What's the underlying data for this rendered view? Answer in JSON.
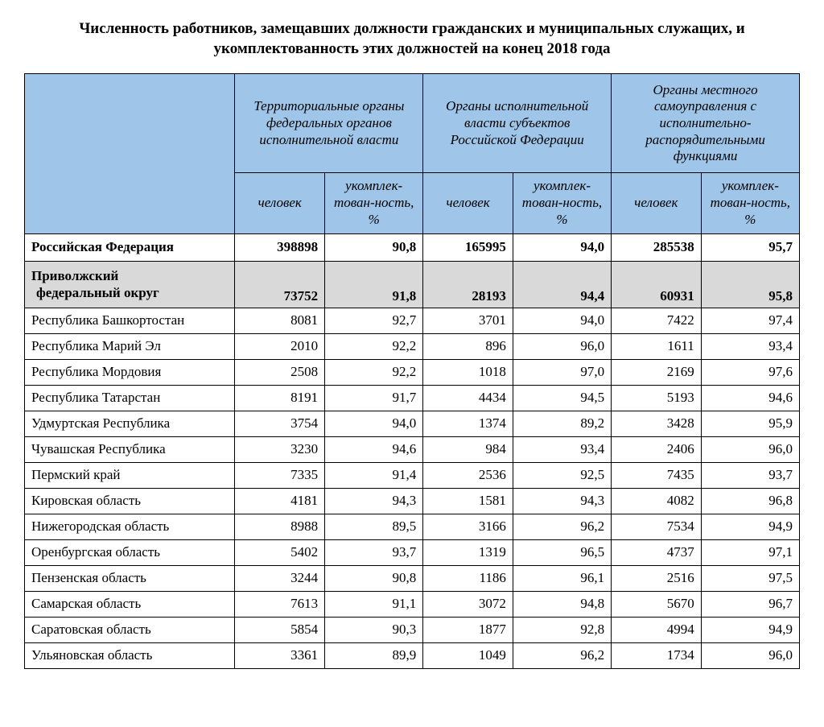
{
  "title": "Численность работников, замещавших должности гражданских и муниципальных служащих, и укомплектованность этих должностей на конец 2018 года",
  "header": {
    "group1": "Территориальные органы федеральных органов исполнительной власти",
    "group2": "Органы исполнительной власти субъектов Российской Федерации",
    "group3": "Органы местного самоуправления с исполнительно-распорядительными функциями",
    "sub_people": "человек",
    "sub_pct": "укомплек-тован-ность, %"
  },
  "rows": [
    {
      "name": "Российская Федерация",
      "c1": "398898",
      "p1": "90,8",
      "c2": "165995",
      "p2": "94,0",
      "c3": "285538",
      "p3": "95,7",
      "kind": "bold"
    },
    {
      "name": "Приволжский\n федеральный округ",
      "c1": "73752",
      "p1": "91,8",
      "c2": "28193",
      "p2": "94,4",
      "c3": "60931",
      "p3": "95,8",
      "kind": "highlight"
    },
    {
      "name": "Республика Башкортостан",
      "c1": "8081",
      "p1": "92,7",
      "c2": "3701",
      "p2": "94,0",
      "c3": "7422",
      "p3": "97,4",
      "kind": "normal"
    },
    {
      "name": "Республика Марий Эл",
      "c1": "2010",
      "p1": "92,2",
      "c2": "896",
      "p2": "96,0",
      "c3": "1611",
      "p3": "93,4",
      "kind": "normal"
    },
    {
      "name": "Республика Мордовия",
      "c1": "2508",
      "p1": "92,2",
      "c2": "1018",
      "p2": "97,0",
      "c3": "2169",
      "p3": "97,6",
      "kind": "normal"
    },
    {
      "name": "Республика Татарстан",
      "c1": "8191",
      "p1": "91,7",
      "c2": "4434",
      "p2": "94,5",
      "c3": "5193",
      "p3": "94,6",
      "kind": "normal"
    },
    {
      "name": "Удмуртская Республика",
      "c1": "3754",
      "p1": "94,0",
      "c2": "1374",
      "p2": "89,2",
      "c3": "3428",
      "p3": "95,9",
      "kind": "normal"
    },
    {
      "name": "Чувашская Республика",
      "c1": "3230",
      "p1": "94,6",
      "c2": "984",
      "p2": "93,4",
      "c3": "2406",
      "p3": "96,0",
      "kind": "normal"
    },
    {
      "name": "Пермский край",
      "c1": "7335",
      "p1": "91,4",
      "c2": "2536",
      "p2": "92,5",
      "c3": "7435",
      "p3": "93,7",
      "kind": "normal"
    },
    {
      "name": "Кировская область",
      "c1": "4181",
      "p1": "94,3",
      "c2": "1581",
      "p2": "94,3",
      "c3": "4082",
      "p3": "96,8",
      "kind": "normal"
    },
    {
      "name": "Нижегородская область",
      "c1": "8988",
      "p1": "89,5",
      "c2": "3166",
      "p2": "96,2",
      "c3": "7534",
      "p3": "94,9",
      "kind": "normal"
    },
    {
      "name": "Оренбургская область",
      "c1": "5402",
      "p1": "93,7",
      "c2": "1319",
      "p2": "96,5",
      "c3": "4737",
      "p3": "97,1",
      "kind": "normal"
    },
    {
      "name": "Пензенская область",
      "c1": "3244",
      "p1": "90,8",
      "c2": "1186",
      "p2": "96,1",
      "c3": "2516",
      "p3": "97,5",
      "kind": "normal"
    },
    {
      "name": "Самарская область",
      "c1": "7613",
      "p1": "91,1",
      "c2": "3072",
      "p2": "94,8",
      "c3": "5670",
      "p3": "96,7",
      "kind": "normal"
    },
    {
      "name": "Саратовская область",
      "c1": "5854",
      "p1": "90,3",
      "c2": "1877",
      "p2": "92,8",
      "c3": "4994",
      "p3": "94,9",
      "kind": "normal"
    },
    {
      "name": "Ульяновская область",
      "c1": "3361",
      "p1": "89,9",
      "c2": "1049",
      "p2": "96,2",
      "c3": "1734",
      "p3": "96,0",
      "kind": "normal"
    }
  ],
  "style": {
    "header_bg": "#9fc5e8",
    "highlight_bg": "#d9d9d9",
    "border_color": "#000000",
    "font_family": "Times New Roman",
    "title_fontsize": 19,
    "body_fontsize": 17
  }
}
